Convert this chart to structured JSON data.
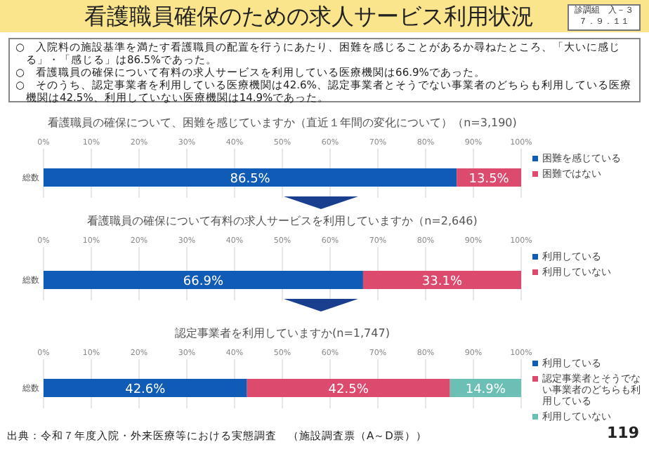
{
  "chart_data": [
    {
      "type": "other",
      "title": "看護職員確保のための求人サービス利用状況",
      "annotations": [
        "診調組　入－３",
        "７．９．１１",
        "○　入院料の施設基準を満たす看護職員の配置を行うにあたり、困難を感じることがあるか尋ねたところ、「大いに感じる」・「感じる」は86.5%であった。",
        "○　看護職員の確保について有料の求人サービスを利用している医療機関は66.9%であった。",
        "○　そのうち、認定事業者を利用している医療機関は42.6%、認定事業者とそうでない事業者のどちらも利用している医療機関は42.5%、利用していない医療機関は14.9%であった。",
        "出典：令和７年度入院・外来医療等における実態調査　（施設調査票（A～D票））",
        "119"
      ]
    },
    {
      "type": "bar",
      "orientation": "horizontal",
      "stacked": true,
      "title": "看護職員の確保について、困難を感じていますか（直近１年間の変化について）（n=3,190)",
      "categories": [
        "総数"
      ],
      "xlim": [
        0,
        100
      ],
      "xticks": [
        {
          "value": 0,
          "label": "0%"
        },
        {
          "value": 10,
          "label": "10%"
        },
        {
          "value": 20,
          "label": "20%"
        },
        {
          "value": 30,
          "label": "30%"
        },
        {
          "value": 40,
          "label": "40%"
        },
        {
          "value": 50,
          "label": "50%"
        },
        {
          "value": 60,
          "label": "60%"
        },
        {
          "value": 70,
          "label": "70%"
        },
        {
          "value": 80,
          "label": "80%"
        },
        {
          "value": 90,
          "label": "90%"
        },
        {
          "value": 100,
          "label": "100%"
        }
      ],
      "grid": "x",
      "legend": "right",
      "series": [
        {
          "name": "困難を感じている",
          "color": "#0f5bb5",
          "values": [
            86.5
          ],
          "value_labels": [
            "86.5%"
          ]
        },
        {
          "name": "困難ではない",
          "color": "#dc4a6e",
          "values": [
            13.5
          ],
          "value_labels": [
            "13.5%"
          ]
        }
      ]
    },
    {
      "type": "bar",
      "orientation": "horizontal",
      "stacked": true,
      "title": "看護職員の確保について有料の求人サービスを利用していますか（n=2,646)",
      "categories": [
        "総数"
      ],
      "xlim": [
        0,
        100
      ],
      "xticks": [
        {
          "value": 0,
          "label": "0%"
        },
        {
          "value": 10,
          "label": "10%"
        },
        {
          "value": 20,
          "label": "20%"
        },
        {
          "value": 30,
          "label": "30%"
        },
        {
          "value": 40,
          "label": "40%"
        },
        {
          "value": 50,
          "label": "50%"
        },
        {
          "value": 60,
          "label": "60%"
        },
        {
          "value": 70,
          "label": "70%"
        },
        {
          "value": 80,
          "label": "80%"
        },
        {
          "value": 90,
          "label": "90%"
        },
        {
          "value": 100,
          "label": "100%"
        }
      ],
      "grid": "x",
      "legend": "right",
      "series": [
        {
          "name": "利用している",
          "color": "#0f5bb5",
          "values": [
            66.9
          ],
          "value_labels": [
            "66.9%"
          ]
        },
        {
          "name": "利用していない",
          "color": "#dc4a6e",
          "values": [
            33.1
          ],
          "value_labels": [
            "33.1%"
          ]
        }
      ]
    },
    {
      "type": "bar",
      "orientation": "horizontal",
      "stacked": true,
      "title": "認定事業者を利用していますか(n=1,747)",
      "categories": [
        "総数"
      ],
      "xlim": [
        0,
        100
      ],
      "xticks": [
        {
          "value": 0,
          "label": "0%"
        },
        {
          "value": 10,
          "label": "10%"
        },
        {
          "value": 20,
          "label": "20%"
        },
        {
          "value": 30,
          "label": "30%"
        },
        {
          "value": 40,
          "label": "40%"
        },
        {
          "value": 50,
          "label": "50%"
        },
        {
          "value": 60,
          "label": "60%"
        },
        {
          "value": 70,
          "label": "70%"
        },
        {
          "value": 80,
          "label": "80%"
        },
        {
          "value": 90,
          "label": "90%"
        },
        {
          "value": 100,
          "label": "100%"
        }
      ],
      "grid": "x",
      "legend": "right",
      "series": [
        {
          "name": "利用している",
          "color": "#0f5bb5",
          "values": [
            42.6
          ],
          "value_labels": [
            "42.6%"
          ]
        },
        {
          "name": "認定事業者とそうでない事業者のどちらも利用している",
          "color": "#dc4a6e",
          "values": [
            42.5
          ],
          "value_labels": [
            "42.5%"
          ]
        },
        {
          "name": "利用していない",
          "color": "#6cbfb5",
          "values": [
            14.9
          ],
          "value_labels": [
            "14.9%"
          ]
        }
      ]
    }
  ]
}
